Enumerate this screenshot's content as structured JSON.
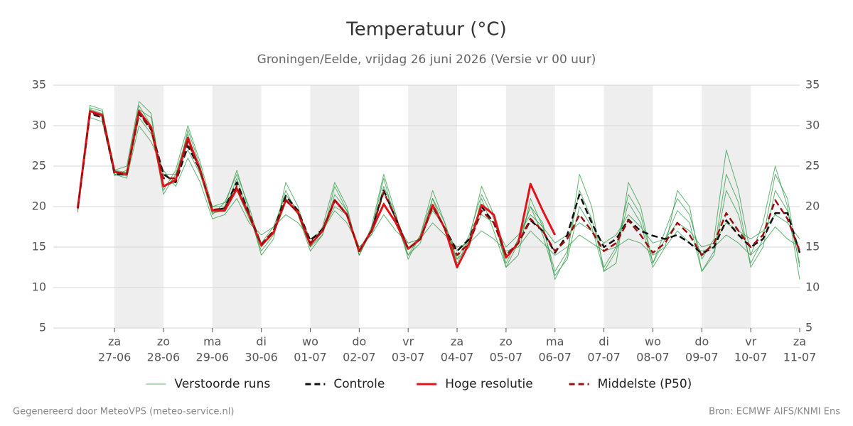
{
  "chart_data": {
    "type": "line",
    "title": "Temperatuur (°C)",
    "subtitle": "Groningen/Eelde, vrijdag 26 juni 2026 (Versie vr 00 uur)",
    "footer_left": "Gegenereerd door MeteoVPS (meteo-service.nl)",
    "footer_right": "Bron: ECMWF AIFS/KNMI Ens",
    "x": [
      0.25,
      0.5,
      0.75,
      1,
      1.25,
      1.5,
      1.75,
      2,
      2.25,
      2.5,
      2.75,
      3,
      3.25,
      3.5,
      3.75,
      4,
      4.25,
      4.5,
      4.75,
      5,
      5.25,
      5.5,
      5.75,
      6,
      6.25,
      6.5,
      6.75,
      7,
      7.25,
      7.5,
      7.75,
      8,
      8.25,
      8.5,
      8.75,
      9,
      9.25,
      9.5,
      9.75,
      10,
      10.25,
      10.5,
      10.75,
      11,
      11.25,
      11.5,
      11.75,
      12,
      12.25,
      12.5,
      12.75,
      13,
      13.25,
      13.5,
      13.75,
      14,
      14.25,
      14.5,
      14.75,
      15
    ],
    "xlim": [
      -0.25,
      15
    ],
    "xticks": [
      {
        "value": 1,
        "label": "za",
        "date": "27-06"
      },
      {
        "value": 2,
        "label": "zo",
        "date": "28-06"
      },
      {
        "value": 3,
        "label": "ma",
        "date": "29-06"
      },
      {
        "value": 4,
        "label": "di",
        "date": "30-06"
      },
      {
        "value": 5,
        "label": "wo",
        "date": "01-07"
      },
      {
        "value": 6,
        "label": "do",
        "date": "02-07"
      },
      {
        "value": 7,
        "label": "vr",
        "date": "03-07"
      },
      {
        "value": 8,
        "label": "za",
        "date": "04-07"
      },
      {
        "value": 9,
        "label": "zo",
        "date": "05-07"
      },
      {
        "value": 10,
        "label": "ma",
        "date": "06-07"
      },
      {
        "value": 11,
        "label": "di",
        "date": "07-07"
      },
      {
        "value": 12,
        "label": "wo",
        "date": "08-07"
      },
      {
        "value": 13,
        "label": "do",
        "date": "09-07"
      },
      {
        "value": 14,
        "label": "vr",
        "date": "10-07"
      },
      {
        "value": 15,
        "label": "za",
        "date": "11-07"
      }
    ],
    "ylim": [
      5,
      35
    ],
    "yticks": [
      5,
      10,
      15,
      20,
      25,
      30,
      35
    ],
    "grid": true,
    "series": [
      {
        "name": "Verstoorde runs",
        "color": "#2e9a44",
        "runs": [
          [
            19.5,
            32.5,
            32.0,
            24.5,
            25.0,
            33.0,
            31.5,
            22.0,
            24.5,
            30.0,
            25.5,
            20.0,
            20.0,
            24.5,
            19.5,
            14.0,
            16.0,
            23.0,
            20.0,
            15.0,
            17.5,
            23.0,
            20.0,
            14.0,
            17.5,
            24.0,
            19.0,
            13.5,
            16.5,
            22.0,
            18.0,
            13.0,
            16.0,
            22.5,
            19.0,
            12.5,
            14.0,
            21.0,
            17.5,
            12.0,
            14.5,
            22.0,
            18.5,
            12.5,
            15.0,
            21.5,
            19.0,
            13.0,
            16.0,
            19.5,
            18.0,
            12.0,
            14.0,
            22.0,
            19.0,
            13.0,
            16.0,
            24.0,
            21.0,
            12.5
          ],
          [
            19.8,
            31.0,
            30.5,
            24.0,
            23.5,
            30.0,
            28.0,
            24.5,
            22.5,
            26.0,
            23.0,
            18.5,
            19.0,
            21.0,
            18.0,
            16.5,
            17.5,
            19.0,
            18.0,
            16.0,
            17.0,
            19.5,
            18.0,
            15.0,
            16.5,
            19.0,
            17.0,
            15.5,
            16.0,
            18.0,
            16.5,
            15.0,
            15.5,
            17.0,
            16.0,
            14.5,
            15.0,
            17.0,
            15.5,
            14.0,
            15.0,
            16.5,
            15.5,
            14.5,
            15.0,
            16.0,
            15.5,
            14.0,
            15.0,
            17.0,
            15.5,
            14.5,
            15.0,
            16.5,
            15.5,
            14.0,
            15.5,
            17.5,
            16.0,
            15.0
          ],
          [
            19.3,
            32.0,
            31.5,
            23.8,
            24.5,
            32.5,
            30.0,
            21.5,
            24.0,
            29.0,
            24.0,
            19.0,
            20.5,
            24.0,
            20.0,
            15.0,
            17.0,
            22.0,
            19.0,
            14.5,
            16.5,
            22.5,
            19.5,
            14.0,
            17.0,
            23.5,
            18.0,
            14.0,
            16.5,
            21.0,
            17.0,
            13.5,
            16.5,
            21.5,
            18.5,
            13.0,
            16.0,
            20.0,
            18.0,
            11.0,
            14.0,
            24.0,
            20.0,
            12.0,
            13.0,
            23.0,
            20.0,
            13.0,
            17.0,
            21.0,
            19.0,
            13.5,
            16.0,
            27.0,
            22.0,
            14.0,
            18.0,
            25.0,
            20.0,
            11.0
          ],
          [
            20.0,
            31.8,
            31.0,
            24.0,
            23.8,
            31.0,
            29.0,
            24.0,
            24.0,
            27.0,
            24.0,
            20.0,
            20.5,
            22.0,
            18.5,
            15.5,
            17.5,
            21.5,
            19.5,
            16.0,
            17.0,
            20.0,
            19.0,
            15.0,
            16.5,
            20.5,
            18.0,
            15.5,
            16.0,
            19.5,
            17.5,
            14.5,
            16.0,
            19.0,
            18.0,
            15.0,
            16.5,
            19.0,
            17.5,
            15.5,
            16.5,
            18.0,
            17.0,
            15.5,
            16.5,
            19.0,
            17.5,
            15.5,
            16.0,
            18.0,
            17.0,
            15.0,
            15.5,
            18.0,
            17.0,
            16.0,
            17.0,
            19.0,
            18.0,
            16.0
          ],
          [
            19.6,
            32.2,
            31.8,
            24.5,
            24.2,
            32.0,
            31.0,
            22.5,
            23.0,
            29.5,
            25.0,
            19.2,
            19.5,
            23.5,
            19.0,
            14.5,
            16.5,
            21.0,
            19.0,
            15.0,
            16.5,
            21.5,
            19.5,
            14.0,
            17.0,
            22.5,
            19.0,
            14.0,
            15.5,
            21.0,
            18.0,
            13.5,
            15.0,
            21.0,
            17.0,
            12.5,
            15.5,
            20.0,
            16.5,
            11.5,
            13.5,
            20.0,
            17.5,
            12.0,
            14.5,
            20.5,
            18.0,
            12.5,
            15.0,
            22.0,
            20.0,
            12.0,
            14.5,
            24.0,
            20.5,
            12.5,
            15.0,
            22.0,
            19.5,
            13.0
          ]
        ]
      },
      {
        "name": "Controle",
        "color": "#111111",
        "dash": true,
        "values": [
          19.8,
          31.5,
          31.0,
          24.0,
          24.0,
          31.5,
          29.5,
          24.0,
          23.0,
          27.5,
          24.5,
          19.5,
          19.8,
          23.0,
          19.2,
          15.3,
          17.0,
          21.3,
          19.5,
          15.8,
          17.2,
          20.8,
          19.0,
          14.5,
          17.0,
          22.0,
          18.5,
          14.8,
          16.0,
          20.2,
          17.3,
          14.5,
          16.0,
          20.0,
          18.0,
          14.0,
          15.5,
          18.3,
          17.0,
          14.3,
          16.5,
          21.5,
          18.0,
          15.0,
          16.0,
          18.4,
          17.0,
          16.4,
          16.0,
          16.5,
          15.5,
          14.2,
          15.0,
          18.3,
          16.5,
          15.0,
          16.0,
          19.2,
          19.2,
          14.3
        ]
      },
      {
        "name": "Hoge resolutie",
        "color": "#e0141b",
        "values": [
          19.8,
          31.8,
          31.3,
          24.3,
          24.0,
          31.8,
          29.8,
          22.5,
          23.3,
          28.5,
          24.5,
          19.5,
          19.5,
          22.2,
          19.0,
          15.2,
          16.8,
          20.8,
          19.3,
          15.3,
          17.0,
          20.8,
          19.0,
          14.5,
          17.0,
          20.3,
          18.0,
          14.8,
          16.0,
          20.2,
          17.3,
          12.5,
          15.5,
          20.2,
          19.0,
          13.7,
          15.5,
          22.8,
          19.5,
          16.5,
          null,
          null,
          null,
          null,
          null,
          null,
          null,
          null,
          null,
          null,
          null,
          null,
          null,
          null,
          null,
          null,
          null,
          null,
          null,
          null
        ]
      },
      {
        "name": "Middelste (P50)",
        "color": "#9a1010",
        "dash": true,
        "values": [
          19.8,
          31.6,
          31.2,
          24.2,
          24.0,
          31.6,
          29.6,
          23.5,
          23.5,
          28.0,
          24.5,
          19.6,
          19.8,
          22.5,
          19.0,
          15.3,
          17.0,
          20.8,
          19.3,
          15.5,
          17.0,
          20.8,
          19.0,
          14.5,
          17.0,
          21.8,
          18.5,
          14.8,
          16.0,
          20.0,
          17.3,
          14.0,
          15.5,
          19.5,
          18.0,
          14.0,
          15.5,
          18.5,
          17.0,
          14.5,
          16.0,
          19.0,
          17.0,
          14.5,
          15.5,
          18.3,
          16.5,
          14.3,
          15.5,
          18.0,
          16.5,
          14.0,
          15.5,
          19.2,
          17.0,
          15.0,
          16.5,
          20.8,
          18.5,
          14.5
        ]
      }
    ]
  }
}
